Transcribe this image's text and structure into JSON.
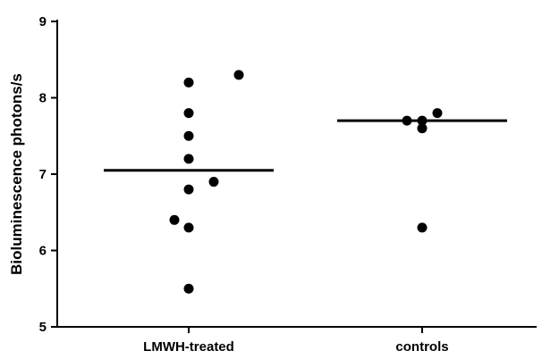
{
  "chart_data": {
    "type": "scatter",
    "title": "",
    "xlabel": "",
    "ylabel": "Bioluminescence photons/s",
    "ylim": [
      5,
      9
    ],
    "yticks": [
      5,
      6,
      7,
      8,
      9
    ],
    "categories": [
      "LMWH-treated",
      "controls"
    ],
    "grid": false,
    "legend": "none",
    "series": [
      {
        "category": "LMWH-treated",
        "values": [
          8.3,
          8.2,
          7.8,
          7.5,
          7.2,
          6.9,
          6.8,
          6.4,
          6.3,
          5.5
        ],
        "median": 7.05
      },
      {
        "category": "controls",
        "values": [
          7.8,
          7.7,
          7.7,
          7.6,
          6.3
        ],
        "median": 7.7
      }
    ]
  }
}
